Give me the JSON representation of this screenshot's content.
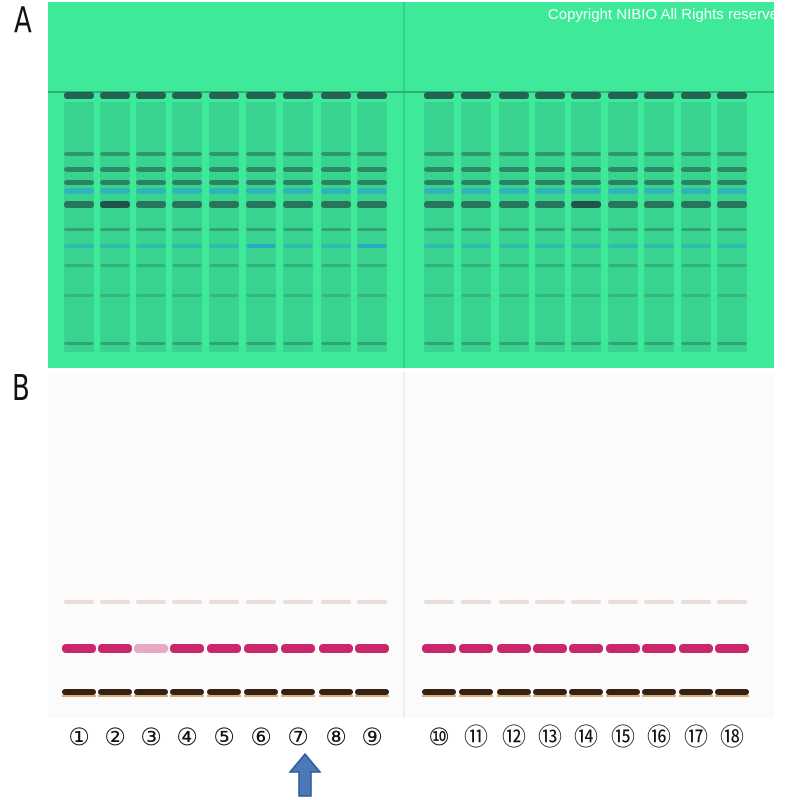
{
  "panels": {
    "a": {
      "label": "A",
      "watermark": "Copyright NIBIO All Rights reserve"
    },
    "b": {
      "label": "B"
    }
  },
  "lanes": [
    "①",
    "②",
    "③",
    "④",
    "⑤",
    "⑥",
    "⑦",
    "⑧",
    "⑨",
    "⑩",
    "⑪",
    "⑫",
    "⑬",
    "⑭",
    "⑮",
    "⑯",
    "⑰",
    "⑱"
  ],
  "highlighted_lane": "⑦",
  "colors": {
    "plate_a_background": "#3ee99a",
    "plate_b_background": "#fbfbfb",
    "band_dark": "#1f4d45",
    "band_blue": "#2aa8c9",
    "band_magenta": "#c4105a",
    "band_black": "#2a1505",
    "arrow": "#4a78b8"
  }
}
